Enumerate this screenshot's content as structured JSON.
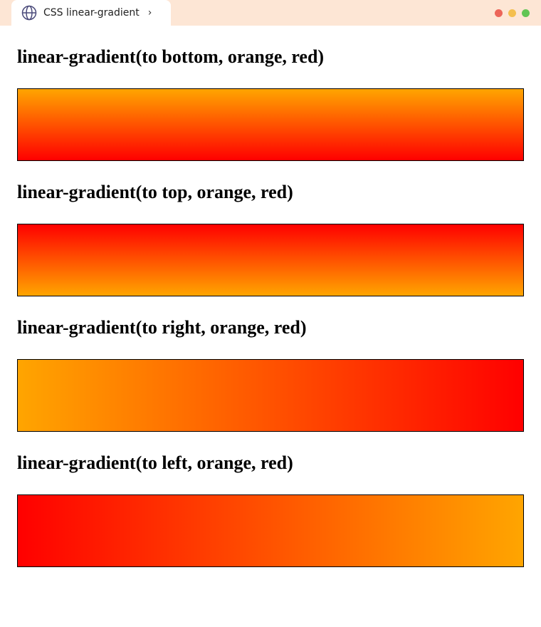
{
  "tab": {
    "title": "CSS linear-gradient",
    "icon": "globe-icon"
  },
  "window_controls": {
    "colors": [
      "#ec6559",
      "#f4bf4f",
      "#61c554"
    ]
  },
  "sections": [
    {
      "heading": "linear-gradient(to bottom, orange, red)",
      "direction": "to bottom",
      "colors": [
        "orange",
        "red"
      ]
    },
    {
      "heading": "linear-gradient(to top, orange, red)",
      "direction": "to top",
      "colors": [
        "orange",
        "red"
      ]
    },
    {
      "heading": "linear-gradient(to right, orange, red)",
      "direction": "to right",
      "colors": [
        "orange",
        "red"
      ]
    },
    {
      "heading": "linear-gradient(to left, orange, red)",
      "direction": "to left",
      "colors": [
        "orange",
        "red"
      ]
    }
  ]
}
